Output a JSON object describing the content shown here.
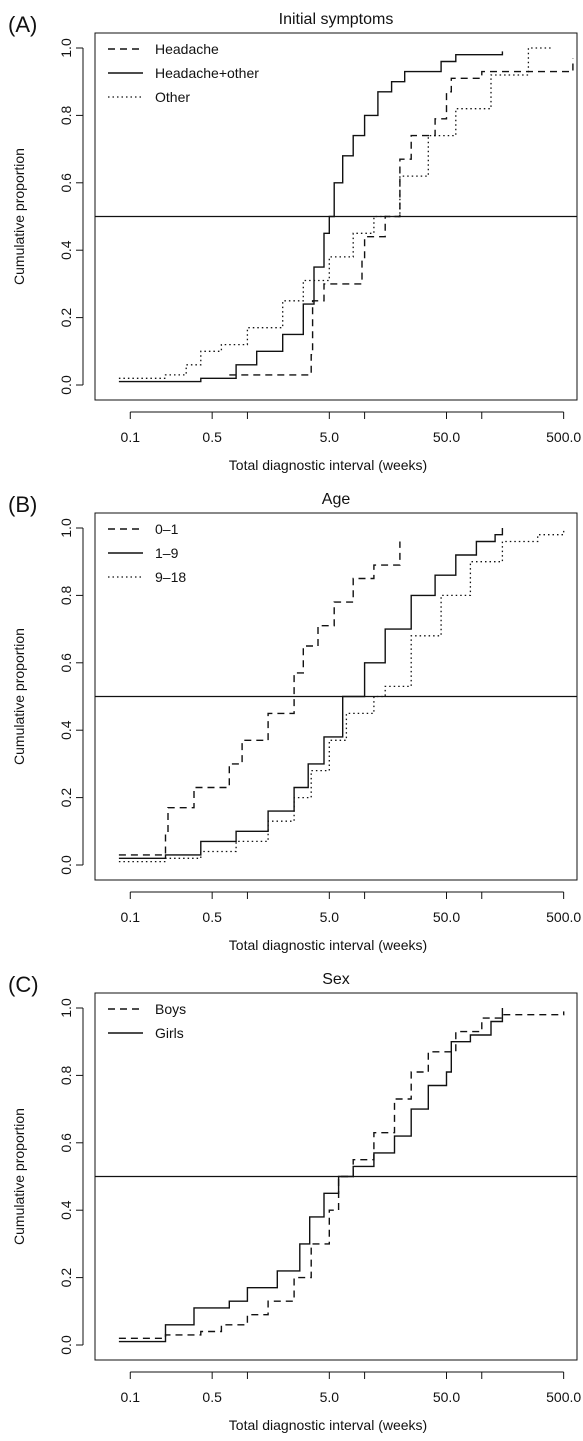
{
  "chart_data": [
    {
      "panel": "(A)",
      "title": "Initial symptoms",
      "type": "line",
      "step": true,
      "xscale": "log",
      "xlim": [
        0.05,
        650
      ],
      "ylim": [
        0,
        1
      ],
      "xticks": [
        0.1,
        0.5,
        5.0,
        50.0,
        500.0
      ],
      "xticklabels": [
        "0.1",
        "0.5",
        "5.0",
        "50.0",
        "500.0"
      ],
      "xminorticks": [
        1,
        10,
        100
      ],
      "yticks": [
        0.0,
        0.2,
        0.4,
        0.6,
        0.8,
        1.0
      ],
      "yticklabels": [
        "0.0",
        "0.2",
        "0.4",
        "0.6",
        "0.8",
        "1.0"
      ],
      "xlabel": "Total diagnostic interval (weeks)",
      "ylabel": "Cumulative proportion",
      "reference_line": 0.5,
      "legend_position": "top-left",
      "series": [
        {
          "name": "Headache",
          "style": "dashed",
          "x": [
            0.7,
            3.5,
            3.6,
            4.5,
            9.5,
            10,
            15,
            20,
            25,
            40,
            50,
            55,
            100,
            600
          ],
          "y": [
            0.03,
            0.09,
            0.25,
            0.3,
            0.37,
            0.44,
            0.5,
            0.67,
            0.74,
            0.79,
            0.87,
            0.91,
            0.93,
            0.97
          ]
        },
        {
          "name": "Headache+other",
          "style": "solid",
          "x": [
            0.08,
            0.4,
            0.8,
            1.2,
            2.0,
            3.0,
            3.7,
            4.5,
            5.0,
            5.5,
            6.5,
            8.0,
            10,
            13,
            17,
            22,
            30,
            45,
            60,
            150
          ],
          "y": [
            0.01,
            0.02,
            0.06,
            0.1,
            0.15,
            0.24,
            0.35,
            0.45,
            0.5,
            0.6,
            0.68,
            0.74,
            0.8,
            0.87,
            0.9,
            0.93,
            0.93,
            0.96,
            0.98,
            0.99
          ]
        },
        {
          "name": "Other",
          "style": "dotted",
          "x": [
            0.08,
            0.2,
            0.3,
            0.4,
            0.6,
            1.0,
            2.0,
            3.0,
            5.0,
            8.0,
            12,
            20,
            35,
            60,
            120,
            250,
            400
          ],
          "y": [
            0.02,
            0.03,
            0.06,
            0.1,
            0.12,
            0.17,
            0.25,
            0.31,
            0.38,
            0.45,
            0.5,
            0.62,
            0.74,
            0.82,
            0.92,
            1.0,
            1.0
          ]
        }
      ]
    },
    {
      "panel": "(B)",
      "title": "Age",
      "type": "line",
      "step": true,
      "xscale": "log",
      "xlim": [
        0.05,
        650
      ],
      "ylim": [
        0,
        1
      ],
      "xticks": [
        0.1,
        0.5,
        5.0,
        50.0,
        500.0
      ],
      "xticklabels": [
        "0.1",
        "0.5",
        "5.0",
        "50.0",
        "500.0"
      ],
      "xminorticks": [
        1,
        10,
        100
      ],
      "yticks": [
        0.0,
        0.2,
        0.4,
        0.6,
        0.8,
        1.0
      ],
      "yticklabels": [
        "0.0",
        "0.2",
        "0.4",
        "0.6",
        "0.8",
        "1.0"
      ],
      "xlabel": "Total diagnostic interval (weeks)",
      "ylabel": "Cumulative proportion",
      "reference_line": 0.5,
      "legend_position": "top-left",
      "series": [
        {
          "name": "0–1",
          "style": "dashed",
          "x": [
            0.08,
            0.2,
            0.21,
            0.35,
            0.7,
            0.9,
            1.5,
            2.5,
            3.0,
            4.0,
            5.5,
            8,
            12,
            20
          ],
          "y": [
            0.03,
            0.1,
            0.17,
            0.23,
            0.3,
            0.37,
            0.45,
            0.57,
            0.65,
            0.71,
            0.78,
            0.85,
            0.89,
            0.96
          ]
        },
        {
          "name": "1–9",
          "style": "solid",
          "x": [
            0.08,
            0.2,
            0.4,
            0.8,
            1.5,
            2.5,
            3.3,
            4.5,
            6.5,
            10,
            15,
            25,
            40,
            60,
            90,
            130,
            150
          ],
          "y": [
            0.02,
            0.03,
            0.07,
            0.1,
            0.16,
            0.23,
            0.3,
            0.38,
            0.5,
            0.6,
            0.7,
            0.8,
            0.86,
            0.92,
            0.96,
            0.98,
            1.0
          ]
        },
        {
          "name": "9–18",
          "style": "dotted",
          "x": [
            0.08,
            0.2,
            0.4,
            0.8,
            1.5,
            2.5,
            3.5,
            5,
            7,
            12,
            15,
            25,
            45,
            80,
            150,
            300,
            500
          ],
          "y": [
            0.01,
            0.02,
            0.04,
            0.07,
            0.13,
            0.2,
            0.28,
            0.37,
            0.45,
            0.5,
            0.53,
            0.68,
            0.8,
            0.9,
            0.96,
            0.98,
            1.0
          ]
        }
      ]
    },
    {
      "panel": "(C)",
      "title": "Sex",
      "type": "line",
      "step": true,
      "xscale": "log",
      "xlim": [
        0.05,
        650
      ],
      "ylim": [
        0,
        1
      ],
      "xticks": [
        0.1,
        0.5,
        5.0,
        50.0,
        500.0
      ],
      "xticklabels": [
        "0.1",
        "0.5",
        "5.0",
        "50.0",
        "500.0"
      ],
      "xminorticks": [
        1,
        10,
        100
      ],
      "yticks": [
        0.0,
        0.2,
        0.4,
        0.6,
        0.8,
        1.0
      ],
      "yticklabels": [
        "0.0",
        "0.2",
        "0.4",
        "0.6",
        "0.8",
        "1.0"
      ],
      "xlabel": "Total diagnostic interval (weeks)",
      "ylabel": "Cumulative proportion",
      "reference_line": 0.5,
      "legend_position": "top-left",
      "series": [
        {
          "name": "Boys",
          "style": "dashed",
          "x": [
            0.08,
            0.2,
            0.4,
            0.6,
            1.0,
            1.5,
            2.5,
            3.5,
            5,
            6,
            8,
            12,
            18,
            25,
            35,
            60,
            100,
            150,
            500
          ],
          "y": [
            0.02,
            0.03,
            0.04,
            0.06,
            0.09,
            0.13,
            0.2,
            0.3,
            0.4,
            0.5,
            0.55,
            0.63,
            0.73,
            0.81,
            0.87,
            0.93,
            0.97,
            0.98,
            0.99
          ]
        },
        {
          "name": "Girls",
          "style": "solid",
          "x": [
            0.08,
            0.2,
            0.35,
            0.7,
            1.0,
            1.8,
            2.8,
            3.4,
            4.5,
            6,
            8,
            12,
            18,
            25,
            35,
            50,
            55,
            80,
            120,
            150
          ],
          "y": [
            0.01,
            0.06,
            0.11,
            0.13,
            0.17,
            0.22,
            0.3,
            0.38,
            0.45,
            0.5,
            0.53,
            0.57,
            0.62,
            0.7,
            0.77,
            0.81,
            0.9,
            0.92,
            0.96,
            1.0
          ]
        }
      ]
    }
  ]
}
